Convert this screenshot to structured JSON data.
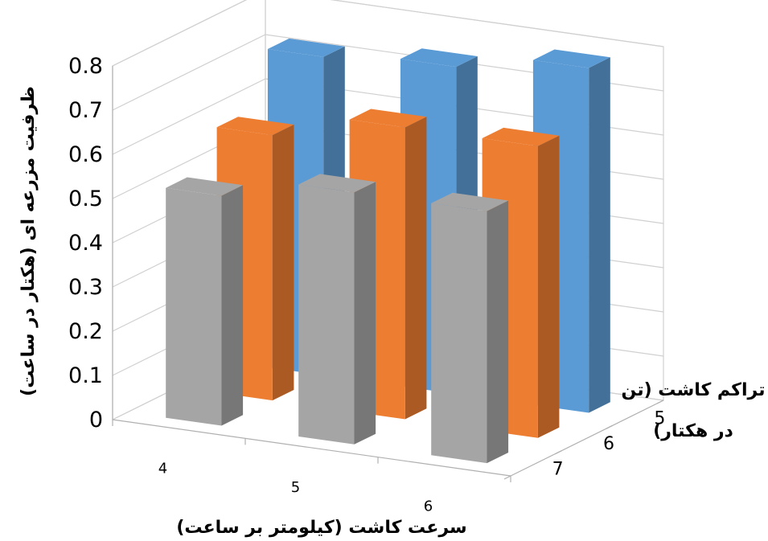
{
  "chart_data": {
    "type": "bar",
    "subtype": "3d-column",
    "categories": [
      "4",
      "5",
      "6"
    ],
    "series_axis_labels": [
      "5",
      "6",
      "7"
    ],
    "series": [
      {
        "key": "5",
        "color": "#5B9BD5",
        "values": [
          0.72,
          0.74,
          0.78
        ]
      },
      {
        "key": "6",
        "color": "#ED7D31",
        "values": [
          0.6,
          0.66,
          0.66
        ]
      },
      {
        "key": "7",
        "color": "#A5A5A5",
        "values": [
          0.52,
          0.57,
          0.57
        ]
      }
    ],
    "ylim": [
      0,
      0.8
    ],
    "yticks": [
      "0",
      "0.1",
      "0.2",
      "0.3",
      "0.4",
      "0.5",
      "0.6",
      "0.7",
      "0.8"
    ],
    "ylabel": "ظرفیت مزرعه ای (هکتار در ساعت)",
    "xlabel": "سرعت کاشت (کیلومتر بر ساعت)",
    "zlabel_line1": "تراکم کاشت (تن",
    "zlabel_line2": "در هکتار)",
    "grid": true,
    "legend": "none"
  }
}
